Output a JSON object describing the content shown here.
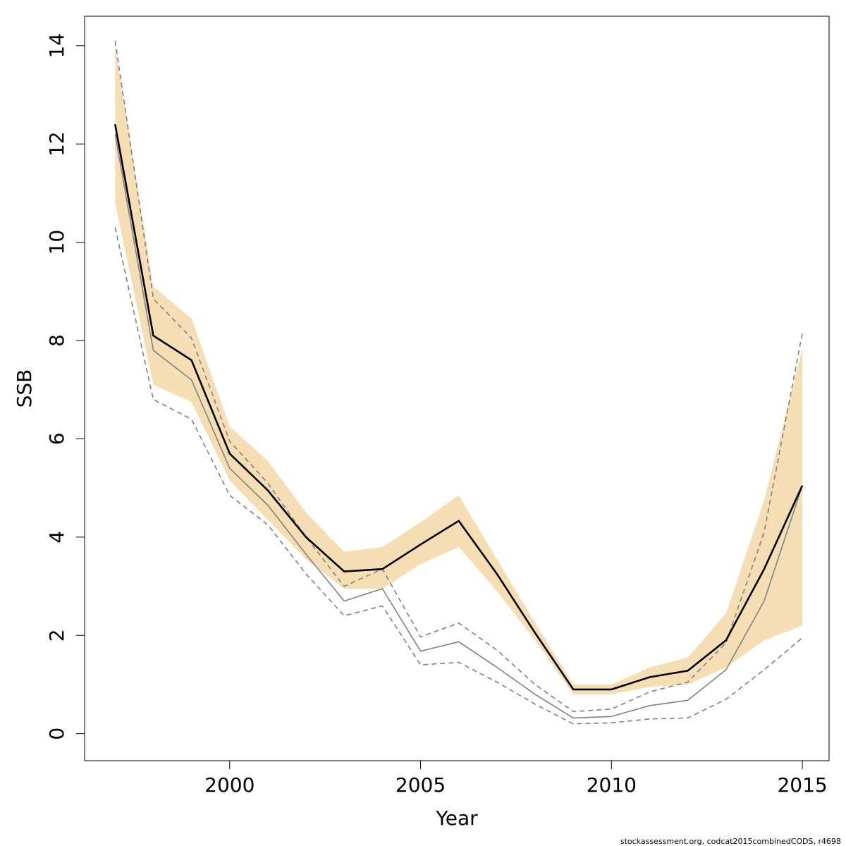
{
  "chart_data": {
    "type": "line",
    "title": "",
    "xlabel": "Year",
    "ylabel": "SSB",
    "xlim": [
      1996.2,
      2015.7
    ],
    "ylim": [
      -0.55,
      14.6
    ],
    "x_ticks": [
      2000,
      2005,
      2010,
      2015
    ],
    "y_ticks": [
      0,
      2,
      4,
      6,
      8,
      10,
      12,
      14
    ],
    "grid": false,
    "legend": "none",
    "colors": {
      "band": "#f5deb3",
      "current_line": "#000000",
      "previous_line": "#808080",
      "previous_ci": "#808080"
    },
    "years": [
      1997,
      1998,
      1999,
      2000,
      2001,
      2002,
      2003,
      2004,
      2005,
      2006,
      2007,
      2008,
      2009,
      2010,
      2011,
      2012,
      2013,
      2014,
      2015
    ],
    "band": {
      "lower": [
        10.8,
        7.1,
        6.75,
        5.15,
        4.35,
        3.55,
        2.95,
        2.95,
        3.45,
        3.8,
        2.9,
        1.9,
        0.8,
        0.8,
        0.95,
        1.0,
        1.35,
        1.9,
        2.2
      ],
      "upper": [
        14.0,
        9.1,
        8.45,
        6.25,
        5.55,
        4.5,
        3.7,
        3.8,
        4.3,
        4.85,
        3.55,
        2.25,
        1.0,
        1.0,
        1.35,
        1.55,
        2.45,
        4.75,
        7.85
      ]
    },
    "series": [
      {
        "values": [
          12.4,
          8.1,
          7.6,
          5.7,
          4.95,
          4.0,
          3.3,
          3.35,
          3.85,
          4.33,
          3.25,
          2.05,
          0.9,
          0.9,
          1.15,
          1.28,
          1.9,
          3.35,
          5.05
        ]
      },
      {
        "values": [
          12.2,
          7.8,
          7.2,
          5.4,
          4.65,
          3.65,
          2.7,
          2.95,
          1.68,
          1.87,
          1.35,
          0.8,
          0.32,
          0.35,
          0.57,
          0.68,
          1.3,
          2.7,
          5.05
        ]
      },
      {
        "values": [
          14.1,
          8.85,
          8.05,
          5.95,
          5.1,
          4.0,
          3.0,
          3.35,
          1.97,
          2.25,
          1.7,
          1.0,
          0.45,
          0.5,
          0.85,
          1.05,
          1.85,
          4.1,
          8.15
        ]
      },
      {
        "values": [
          10.3,
          6.8,
          6.4,
          4.85,
          4.25,
          3.25,
          2.4,
          2.6,
          1.4,
          1.45,
          1.05,
          0.6,
          0.2,
          0.22,
          0.3,
          0.32,
          0.7,
          1.3,
          1.95
        ]
      }
    ],
    "annotation": "stockassessment.org, codcat2015combinedCODS, r4698"
  }
}
